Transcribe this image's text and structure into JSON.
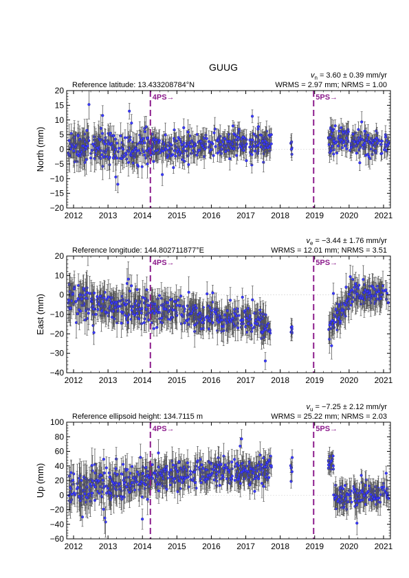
{
  "figure": {
    "title": "GUUG"
  },
  "colors": {
    "point_fill": "#3a3aff",
    "point_edge": "#1a1a8c",
    "errorbar": "#555555",
    "event_line": "#8b1a8b",
    "zero_line": "#cccccc"
  },
  "event_arrow": "→",
  "chart_data": [
    {
      "type": "scatter",
      "subtype": "gnss-time-series-with-error-bars",
      "ylabel": "North (mm)",
      "ylim": [
        -20,
        20
      ],
      "yticks": [
        -20,
        -15,
        -10,
        -5,
        0,
        5,
        10,
        15,
        20
      ],
      "xlim": [
        2011.8,
        2021.2
      ],
      "xticks": [
        2012,
        2013,
        2014,
        2015,
        2016,
        2017,
        2018,
        2019,
        2020,
        2021
      ],
      "xtick_labels": [
        "2012",
        "2013",
        "2014",
        "2015",
        "2016",
        "2017",
        "2018",
        "2019",
        "2020",
        "2021"
      ],
      "ref_label": "Reference latitude: 13.433208784°N",
      "velocity": {
        "symbol": "v",
        "sub": "n",
        "text": " = 3.60 ± 0.39 mm/yr"
      },
      "stats": "WRMS = 2.97 mm; NRMS = 1.00",
      "events": [
        {
          "x": 2014.23,
          "label": "4PS"
        },
        {
          "x": 2018.97,
          "label": "5PS"
        }
      ],
      "grid": false,
      "segments": [
        {
          "x0": 2011.85,
          "x1": 2012.55,
          "mean": 1.0,
          "trend": 0.0,
          "spread": 3.0,
          "err": 4.0,
          "n": 70
        },
        {
          "x0": 2012.55,
          "x1": 2013.1,
          "mean": 0.5,
          "trend": 0.0,
          "spread": 2.6,
          "err": 3.8,
          "n": 55
        },
        {
          "x0": 2013.1,
          "x1": 2014.23,
          "mean": -0.5,
          "trend": 0.8,
          "spread": 2.5,
          "err": 3.6,
          "n": 110
        },
        {
          "x0": 2014.23,
          "x1": 2015.5,
          "mean": 0.0,
          "trend": 0.7,
          "spread": 2.2,
          "err": 3.2,
          "n": 120
        },
        {
          "x0": 2015.5,
          "x1": 2017.65,
          "mean": 1.2,
          "trend": 0.9,
          "spread": 2.0,
          "err": 3.0,
          "n": 210
        },
        {
          "x0": 2017.45,
          "x1": 2017.75,
          "mean": 3.0,
          "trend": 0.0,
          "spread": 1.8,
          "err": 2.5,
          "n": 20
        },
        {
          "x0": 2018.3,
          "x1": 2018.35,
          "mean": 1.0,
          "trend": 0.0,
          "spread": 1.5,
          "err": 2.5,
          "n": 6
        },
        {
          "x0": 2019.4,
          "x1": 2020.0,
          "mean": 2.0,
          "trend": 2.5,
          "spread": 2.2,
          "err": 2.8,
          "n": 70
        },
        {
          "x0": 2020.0,
          "x1": 2021.15,
          "mean": 2.0,
          "trend": -0.5,
          "spread": 2.0,
          "err": 2.6,
          "n": 110
        }
      ]
    },
    {
      "type": "scatter",
      "subtype": "gnss-time-series-with-error-bars",
      "ylabel": "East (mm)",
      "ylim": [
        -40,
        20
      ],
      "yticks": [
        -40,
        -30,
        -20,
        -10,
        0,
        10,
        20
      ],
      "xlim": [
        2011.8,
        2021.2
      ],
      "xticks": [
        2012,
        2013,
        2014,
        2015,
        2016,
        2017,
        2018,
        2019,
        2020,
        2021
      ],
      "xtick_labels": [
        "2012",
        "2013",
        "2014",
        "2015",
        "2016",
        "2017",
        "2018",
        "2019",
        "2020",
        "2021"
      ],
      "ref_label": "Reference longitude: 144.802711877°E",
      "velocity": {
        "symbol": "v",
        "sub": "e",
        "text": " = −3.44 ± 1.76 mm/yr"
      },
      "stats": "WRMS = 12.01 mm; NRMS = 3.51",
      "events": [
        {
          "x": 2014.23,
          "label": "4PS"
        },
        {
          "x": 2018.97,
          "label": "5PS"
        }
      ],
      "grid": false,
      "segments": [
        {
          "x0": 2011.85,
          "x1": 2012.55,
          "mean": -1.0,
          "trend": -2.0,
          "spread": 4.0,
          "err": 7.0,
          "n": 70
        },
        {
          "x0": 2012.55,
          "x1": 2013.1,
          "mean": -4.0,
          "trend": -1.0,
          "spread": 3.5,
          "err": 6.5,
          "n": 55
        },
        {
          "x0": 2013.1,
          "x1": 2014.23,
          "mean": -6.0,
          "trend": 0.5,
          "spread": 3.5,
          "err": 6.5,
          "n": 110
        },
        {
          "x0": 2014.23,
          "x1": 2015.5,
          "mean": -7.0,
          "trend": -2.0,
          "spread": 3.0,
          "err": 6.0,
          "n": 120
        },
        {
          "x0": 2015.5,
          "x1": 2017.65,
          "mean": -11.0,
          "trend": -3.5,
          "spread": 3.0,
          "err": 6.0,
          "n": 210
        },
        {
          "x0": 2017.45,
          "x1": 2017.75,
          "mean": -18.0,
          "trend": 0.0,
          "spread": 2.5,
          "err": 4.5,
          "n": 20
        },
        {
          "x0": 2018.3,
          "x1": 2018.35,
          "mean": -18.0,
          "trend": 0.0,
          "spread": 2.0,
          "err": 4.0,
          "n": 6
        },
        {
          "x0": 2019.4,
          "x1": 2020.0,
          "mean": -17.0,
          "trend": 14.0,
          "spread": 3.0,
          "err": 5.5,
          "n": 70
        },
        {
          "x0": 2020.0,
          "x1": 2021.15,
          "mean": 0.5,
          "trend": 0.0,
          "spread": 3.0,
          "err": 5.5,
          "n": 110
        }
      ]
    },
    {
      "type": "scatter",
      "subtype": "gnss-time-series-with-error-bars",
      "ylabel": "Up (mm)",
      "ylim": [
        -60,
        100
      ],
      "yticks": [
        -60,
        -40,
        -20,
        0,
        20,
        40,
        60,
        80,
        100
      ],
      "xlim": [
        2011.8,
        2021.2
      ],
      "xticks": [
        2012,
        2013,
        2014,
        2015,
        2016,
        2017,
        2018,
        2019,
        2020,
        2021
      ],
      "xtick_labels": [
        "2012",
        "2013",
        "2014",
        "2015",
        "2016",
        "2017",
        "2018",
        "2019",
        "2020",
        "2021"
      ],
      "ref_label": "Reference ellipsoid height: 134.7115 m",
      "velocity": {
        "symbol": "v",
        "sub": "u",
        "text": " = −7.25 ± 2.12 mm/yr"
      },
      "stats": "WRMS = 25.22 mm; NRMS = 2.03",
      "events": [
        {
          "x": 2014.23,
          "label": "4PS"
        },
        {
          "x": 2018.97,
          "label": "5PS"
        }
      ],
      "grid": false,
      "segments": [
        {
          "x0": 2011.85,
          "x1": 2012.55,
          "mean": 8.0,
          "trend": 0.0,
          "spread": 12.0,
          "err": 20.0,
          "n": 70
        },
        {
          "x0": 2012.55,
          "x1": 2013.1,
          "mean": 10.0,
          "trend": 0.0,
          "spread": 11.0,
          "err": 18.0,
          "n": 55
        },
        {
          "x0": 2013.1,
          "x1": 2014.23,
          "mean": 16.0,
          "trend": 4.0,
          "spread": 10.0,
          "err": 17.0,
          "n": 110
        },
        {
          "x0": 2014.23,
          "x1": 2015.5,
          "mean": 25.0,
          "trend": 3.0,
          "spread": 9.0,
          "err": 15.0,
          "n": 120
        },
        {
          "x0": 2015.5,
          "x1": 2017.65,
          "mean": 30.0,
          "trend": 3.0,
          "spread": 9.0,
          "err": 15.0,
          "n": 210
        },
        {
          "x0": 2017.45,
          "x1": 2017.75,
          "mean": 38.0,
          "trend": 0.0,
          "spread": 8.0,
          "err": 12.0,
          "n": 20
        },
        {
          "x0": 2018.3,
          "x1": 2018.35,
          "mean": 33.0,
          "trend": 0.0,
          "spread": 8.0,
          "err": 10.0,
          "n": 6
        },
        {
          "x0": 2019.4,
          "x1": 2019.55,
          "mean": 45.0,
          "trend": 0.0,
          "spread": 6.0,
          "err": 10.0,
          "n": 18
        },
        {
          "x0": 2019.55,
          "x1": 2020.0,
          "mean": -5.0,
          "trend": 0.0,
          "spread": 8.0,
          "err": 14.0,
          "n": 50
        },
        {
          "x0": 2020.0,
          "x1": 2021.15,
          "mean": 0.0,
          "trend": 2.0,
          "spread": 8.0,
          "err": 14.0,
          "n": 110
        }
      ]
    }
  ]
}
